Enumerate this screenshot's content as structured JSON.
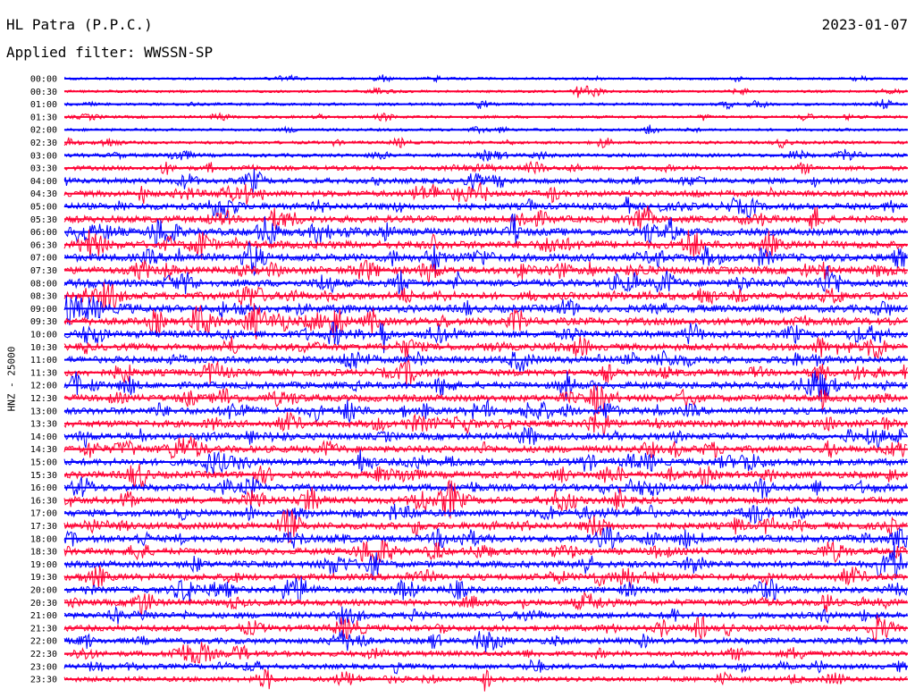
{
  "header": {
    "station": "HL Patra (P.P.C.)",
    "filter": "Applied filter: WWSSN-SP",
    "date": "2023-01-07"
  },
  "chart_data": {
    "type": "line",
    "title": "HL Patra (P.P.C.)",
    "subtitle": "Applied filter: WWSSN-SP",
    "ylabel": "HNZ - 25000",
    "xlabel": "",
    "date": "2023-01-07",
    "row_labels": [
      "00:00",
      "00:30",
      "01:00",
      "01:30",
      "02:00",
      "02:30",
      "03:00",
      "03:30",
      "04:00",
      "04:30",
      "05:00",
      "05:30",
      "06:00",
      "06:30",
      "07:00",
      "07:30",
      "08:00",
      "08:30",
      "09:00",
      "09:30",
      "10:00",
      "10:30",
      "11:00",
      "11:30",
      "12:00",
      "12:30",
      "13:00",
      "13:30",
      "14:00",
      "14:30",
      "15:00",
      "15:30",
      "16:00",
      "16:30",
      "17:00",
      "17:30",
      "18:00",
      "18:30",
      "19:00",
      "19:30",
      "20:00",
      "20:30",
      "21:00",
      "21:30",
      "22:00",
      "22:30",
      "23:00",
      "23:30"
    ],
    "colors": {
      "even_rows": "#0000ff",
      "odd_rows": "#ff0033"
    },
    "row_activity": [
      0.25,
      0.25,
      0.3,
      0.3,
      0.3,
      0.35,
      0.45,
      0.6,
      0.75,
      0.85,
      0.95,
      1.0,
      1.1,
      1.15,
      1.15,
      1.1,
      1.05,
      1.1,
      1.1,
      1.1,
      1.05,
      1.0,
      1.0,
      1.0,
      1.0,
      1.0,
      1.0,
      1.0,
      1.0,
      1.0,
      1.0,
      1.0,
      1.0,
      1.0,
      1.0,
      1.0,
      1.0,
      0.95,
      0.95,
      0.95,
      0.9,
      0.9,
      0.85,
      0.85,
      0.8,
      0.75,
      0.7,
      0.65
    ]
  }
}
